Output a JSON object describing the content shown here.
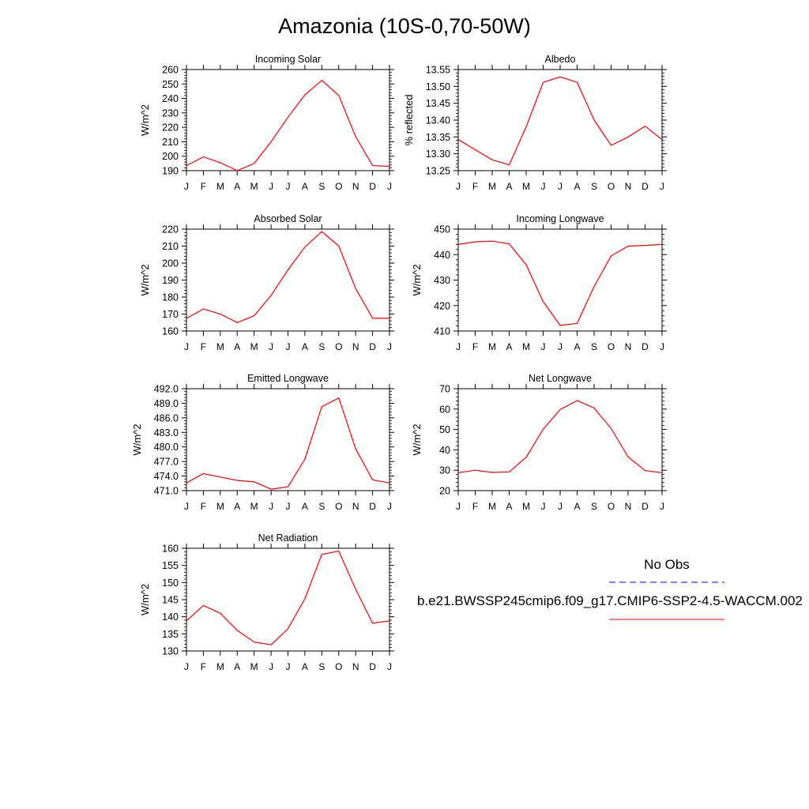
{
  "title": "Amazonia (10S-0,70-50W)",
  "month_ticks": [
    "J",
    "F",
    "M",
    "A",
    "M",
    "J",
    "J",
    "A",
    "S",
    "O",
    "N",
    "D",
    "J"
  ],
  "legend": {
    "obs_label": "No Obs",
    "obs_color": "#0000ff",
    "model_label": "b.e21.BWSSP245cmip6.f09_g17.CMIP6-SSP2-4.5-WACCM.002",
    "model_color": "#ff0000"
  },
  "chart_data": [
    {
      "type": "line",
      "title": "Incoming Solar",
      "ylabel": "W/m^2",
      "ylim": [
        190,
        260
      ],
      "yticks": [
        "190",
        "200",
        "210",
        "220",
        "230",
        "240",
        "250",
        "260"
      ],
      "x": [
        "J",
        "F",
        "M",
        "A",
        "M",
        "J",
        "J",
        "A",
        "S",
        "O",
        "N",
        "D",
        "J"
      ],
      "series": [
        {
          "values": [
            193.5,
            199.5,
            195.5,
            190,
            195,
            210,
            227,
            242.5,
            252.5,
            242,
            213.5,
            193.5,
            193
          ]
        }
      ]
    },
    {
      "type": "line",
      "title": "Albedo",
      "ylabel": "% reflected",
      "ylim": [
        13.25,
        13.55
      ],
      "yticks": [
        "13.25",
        "13.30",
        "13.35",
        "13.40",
        "13.45",
        "13.50",
        "13.55"
      ],
      "x": [
        "J",
        "F",
        "M",
        "A",
        "M",
        "J",
        "J",
        "A",
        "S",
        "O",
        "N",
        "D",
        "J"
      ],
      "series": [
        {
          "values": [
            13.342,
            13.312,
            13.282,
            13.267,
            13.38,
            13.512,
            13.528,
            13.512,
            13.4,
            13.325,
            13.35,
            13.382,
            13.342
          ]
        }
      ]
    },
    {
      "type": "line",
      "title": "Absorbed Solar",
      "ylabel": "W/m^2",
      "ylim": [
        160,
        220
      ],
      "yticks": [
        "160",
        "170",
        "180",
        "190",
        "200",
        "210",
        "220"
      ],
      "x": [
        "J",
        "F",
        "M",
        "A",
        "M",
        "J",
        "J",
        "A",
        "S",
        "O",
        "N",
        "D",
        "J"
      ],
      "series": [
        {
          "values": [
            167.5,
            173,
            170,
            165,
            169,
            181,
            196,
            209.5,
            218.5,
            210,
            185,
            167.5,
            167.5
          ]
        }
      ]
    },
    {
      "type": "line",
      "title": "Incoming Longwave",
      "ylabel": "W/m^2",
      "ylim": [
        410,
        450
      ],
      "yticks": [
        "410",
        "420",
        "430",
        "440",
        "450"
      ],
      "x": [
        "J",
        "F",
        "M",
        "A",
        "M",
        "J",
        "J",
        "A",
        "S",
        "O",
        "N",
        "D",
        "J"
      ],
      "series": [
        {
          "values": [
            444,
            445,
            445.3,
            444.2,
            436,
            421.5,
            412.2,
            413,
            427.5,
            439.5,
            443.3,
            443.6,
            444
          ]
        }
      ]
    },
    {
      "type": "line",
      "title": "Emitted Longwave",
      "ylabel": "W/m^2",
      "ylim": [
        471,
        492
      ],
      "yticks": [
        "471.0",
        "474.0",
        "477.0",
        "480.0",
        "483.0",
        "486.0",
        "489.0",
        "492.0"
      ],
      "x": [
        "J",
        "F",
        "M",
        "A",
        "M",
        "J",
        "J",
        "A",
        "S",
        "O",
        "N",
        "D",
        "J"
      ],
      "series": [
        {
          "values": [
            472.6,
            474.5,
            473.8,
            473.1,
            472.8,
            471.3,
            471.8,
            477.5,
            488.3,
            490.1,
            479.6,
            473.2,
            472.6
          ]
        }
      ]
    },
    {
      "type": "line",
      "title": "Net Longwave",
      "ylabel": "W/m^2",
      "ylim": [
        20,
        70
      ],
      "yticks": [
        "20",
        "30",
        "40",
        "50",
        "60",
        "70"
      ],
      "x": [
        "J",
        "F",
        "M",
        "A",
        "M",
        "J",
        "J",
        "A",
        "S",
        "O",
        "N",
        "D",
        "J"
      ],
      "series": [
        {
          "values": [
            28.8,
            30,
            28.9,
            29.2,
            36.4,
            50.1,
            59.8,
            64.2,
            60.5,
            50.5,
            36.5,
            29.8,
            28.8
          ]
        }
      ]
    },
    {
      "type": "line",
      "title": "Net Radiation",
      "ylabel": "W/m^2",
      "ylim": [
        130,
        160
      ],
      "yticks": [
        "130",
        "135",
        "140",
        "145",
        "150",
        "155",
        "160"
      ],
      "x": [
        "J",
        "F",
        "M",
        "A",
        "M",
        "J",
        "J",
        "A",
        "S",
        "O",
        "N",
        "D",
        "J"
      ],
      "series": [
        {
          "values": [
            138.8,
            143.3,
            141,
            136,
            132.6,
            131.8,
            136.5,
            145.3,
            158.2,
            159.2,
            148,
            138.1,
            138.8
          ]
        }
      ]
    }
  ]
}
